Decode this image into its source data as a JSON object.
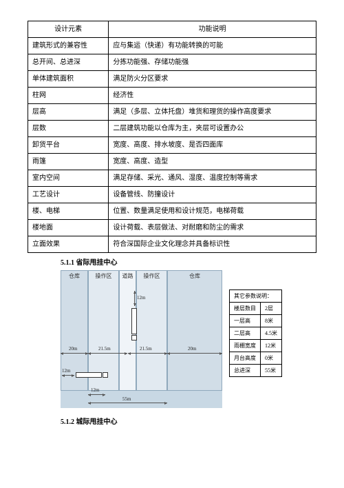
{
  "table": {
    "header": {
      "col_a": "设计元素",
      "col_b": "功能说明"
    },
    "rows": [
      {
        "a": "建筑形式的兼容性",
        "b": "应与集运（快递）有功能转换的可能"
      },
      {
        "a": "总开间、总进深",
        "b": "分拣功能强、存储功能强"
      },
      {
        "a": "单体建筑面积",
        "b": "满足防火分区要求"
      },
      {
        "a": "柱网",
        "b": "经济性"
      },
      {
        "a": "层高",
        "b": "满足（多层、立体托盘）堆货和理货的操作高度要求"
      },
      {
        "a": "层数",
        "b": "二层建筑功能以仓库为主，夹层可设置办公"
      },
      {
        "a": "卸货平台",
        "b": "宽度、高度、排水坡度、是否四面库"
      },
      {
        "a": "雨篷",
        "b": "宽度、高度、造型"
      },
      {
        "a": "室内空间",
        "b": "满足存储、采光、通风、湿度、温度控制等需求"
      },
      {
        "a": "工艺设计",
        "b": "设备管线、防撞设计"
      },
      {
        "a": "楼、电梯",
        "b": "位置、数量满足使用和设计规范，电梯荷载"
      },
      {
        "a": "楼地面",
        "b": "设计荷载、表层做法、对耐磨和防尘的需求"
      },
      {
        "a": "立面效果",
        "b": "符合深国际企业文化理念并具备标识性"
      }
    ]
  },
  "section_511": "5.1.1  省际甩挂中心",
  "section_512": "5.1.2  城际甩挂中心",
  "diagram": {
    "zones": {
      "warehouse_left": "仓库",
      "ops_left": "操作区",
      "road": "道路",
      "ops_right": "操作区",
      "warehouse_right": "仓库"
    },
    "dims": {
      "d12m_top": "12m",
      "d20m_left": "20m",
      "d21_5_left": "21.5m",
      "d21_5_right": "21.5m",
      "d20m_right": "20m",
      "d12m_side": "12m",
      "d12m_bottom": "12m",
      "d55m": "55m"
    }
  },
  "params": {
    "title": "其它参数说明：",
    "rows": [
      {
        "k": "楼层数目",
        "v": "2层"
      },
      {
        "k": "一层高",
        "v": "8米"
      },
      {
        "k": "二层高",
        "v": "4.5米"
      },
      {
        "k": "雨棚宽度",
        "v": "12米"
      },
      {
        "k": "月台高度",
        "v": "0米"
      },
      {
        "k": "总进深",
        "v": "55米"
      }
    ]
  }
}
